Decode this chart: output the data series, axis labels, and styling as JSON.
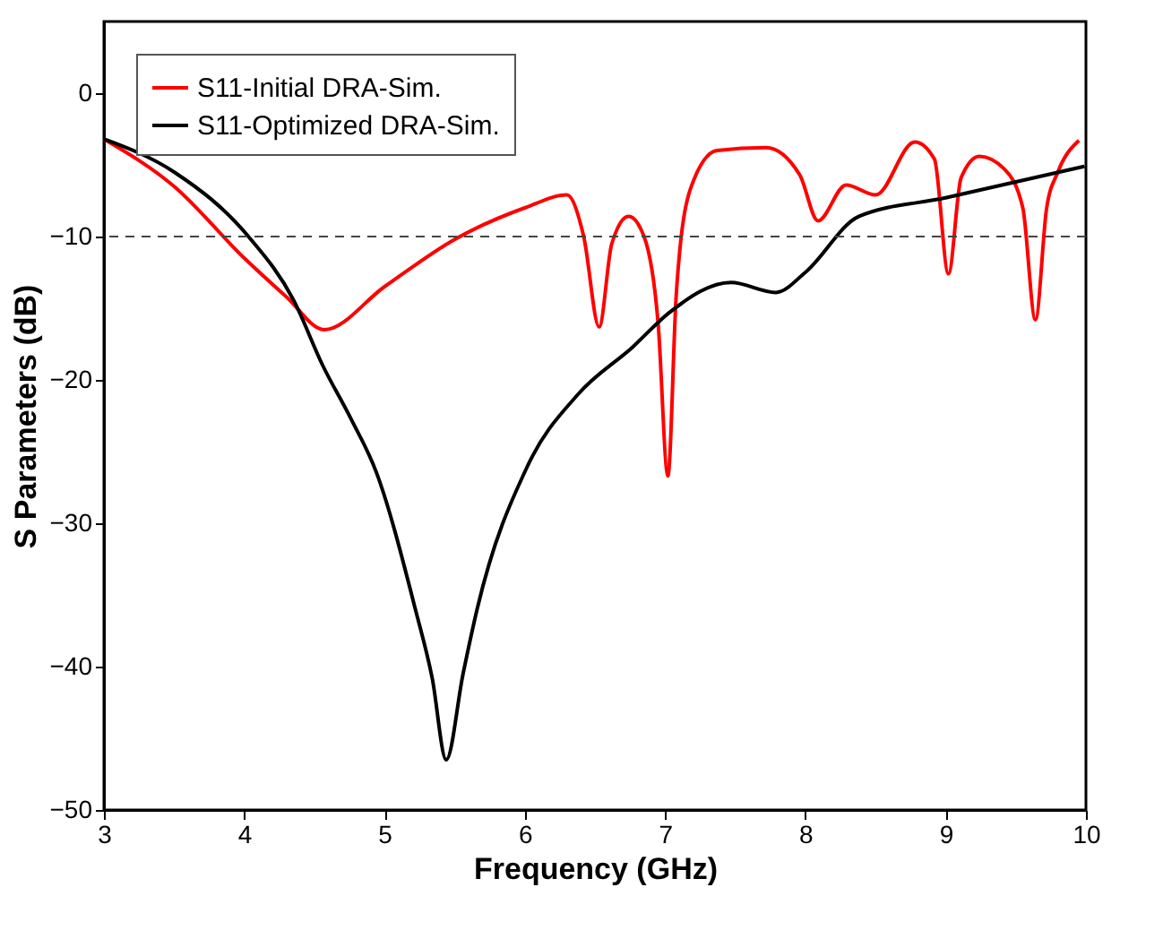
{
  "chart_data": {
    "type": "line",
    "xlabel": "Frequency (GHz)",
    "ylabel": "S Parameters (dB)",
    "xlim": [
      3,
      10
    ],
    "xticks": [
      3,
      4,
      5,
      6,
      7,
      8,
      9,
      10
    ],
    "ylim": [
      -50,
      5
    ],
    "yticks": [
      -50,
      -40,
      -30,
      -20,
      -10,
      0
    ],
    "grid": false,
    "legend": "top left",
    "line_style": "solid",
    "marker": "none",
    "ref_lines": [
      {
        "axis": "y",
        "value": -10,
        "label": null,
        "color": "#444444",
        "line_style": "dashed"
      }
    ],
    "series": [
      {
        "name": "S11-Initial DRA-Sim.",
        "color": "#ff0000",
        "x": [
          3,
          3.5,
          4,
          4.3,
          4.57,
          5,
          5.5,
          6,
          6.3,
          6.42,
          6.53,
          6.62,
          6.74,
          6.85,
          6.95,
          7.02,
          7.08,
          7.18,
          7.37,
          7.72,
          7.96,
          8.09,
          8.29,
          8.5,
          8.78,
          8.92,
          9.02,
          9.11,
          9.24,
          9.42,
          9.55,
          9.64,
          9.72,
          9.8,
          9.95
        ],
        "values": [
          -3.2,
          -6.5,
          -11.5,
          -14.2,
          -16.5,
          -13.5,
          -10.2,
          -8,
          -7.1,
          -10,
          -16.3,
          -10.5,
          -8.6,
          -10,
          -16,
          -26.7,
          -14,
          -6.7,
          -4.0,
          -3.8,
          -5.7,
          -8.9,
          -6.4,
          -7.1,
          -3.4,
          -4.6,
          -12.6,
          -5.9,
          -4.4,
          -5.3,
          -8,
          -15.8,
          -8,
          -5.5,
          -3.3
        ]
      },
      {
        "name": "S11-Optimized DRA-Sim.",
        "color": "#000000",
        "x": [
          3,
          3.5,
          4.03,
          4.35,
          4.56,
          4.76,
          4.94,
          5.22,
          5.34,
          5.44,
          5.56,
          5.66,
          6.02,
          6.38,
          6.77,
          7.03,
          7.47,
          7.79,
          8.0,
          8.38,
          9.0,
          9.99
        ],
        "values": [
          -3.2,
          -5.5,
          -10,
          -14.4,
          -19,
          -22.7,
          -26.4,
          -36,
          -40.8,
          -46.5,
          -40.5,
          -36,
          -26,
          -21,
          -17.7,
          -15.3,
          -13.2,
          -13.9,
          -12.5,
          -8.6,
          -7.3,
          -5.1
        ]
      }
    ]
  }
}
